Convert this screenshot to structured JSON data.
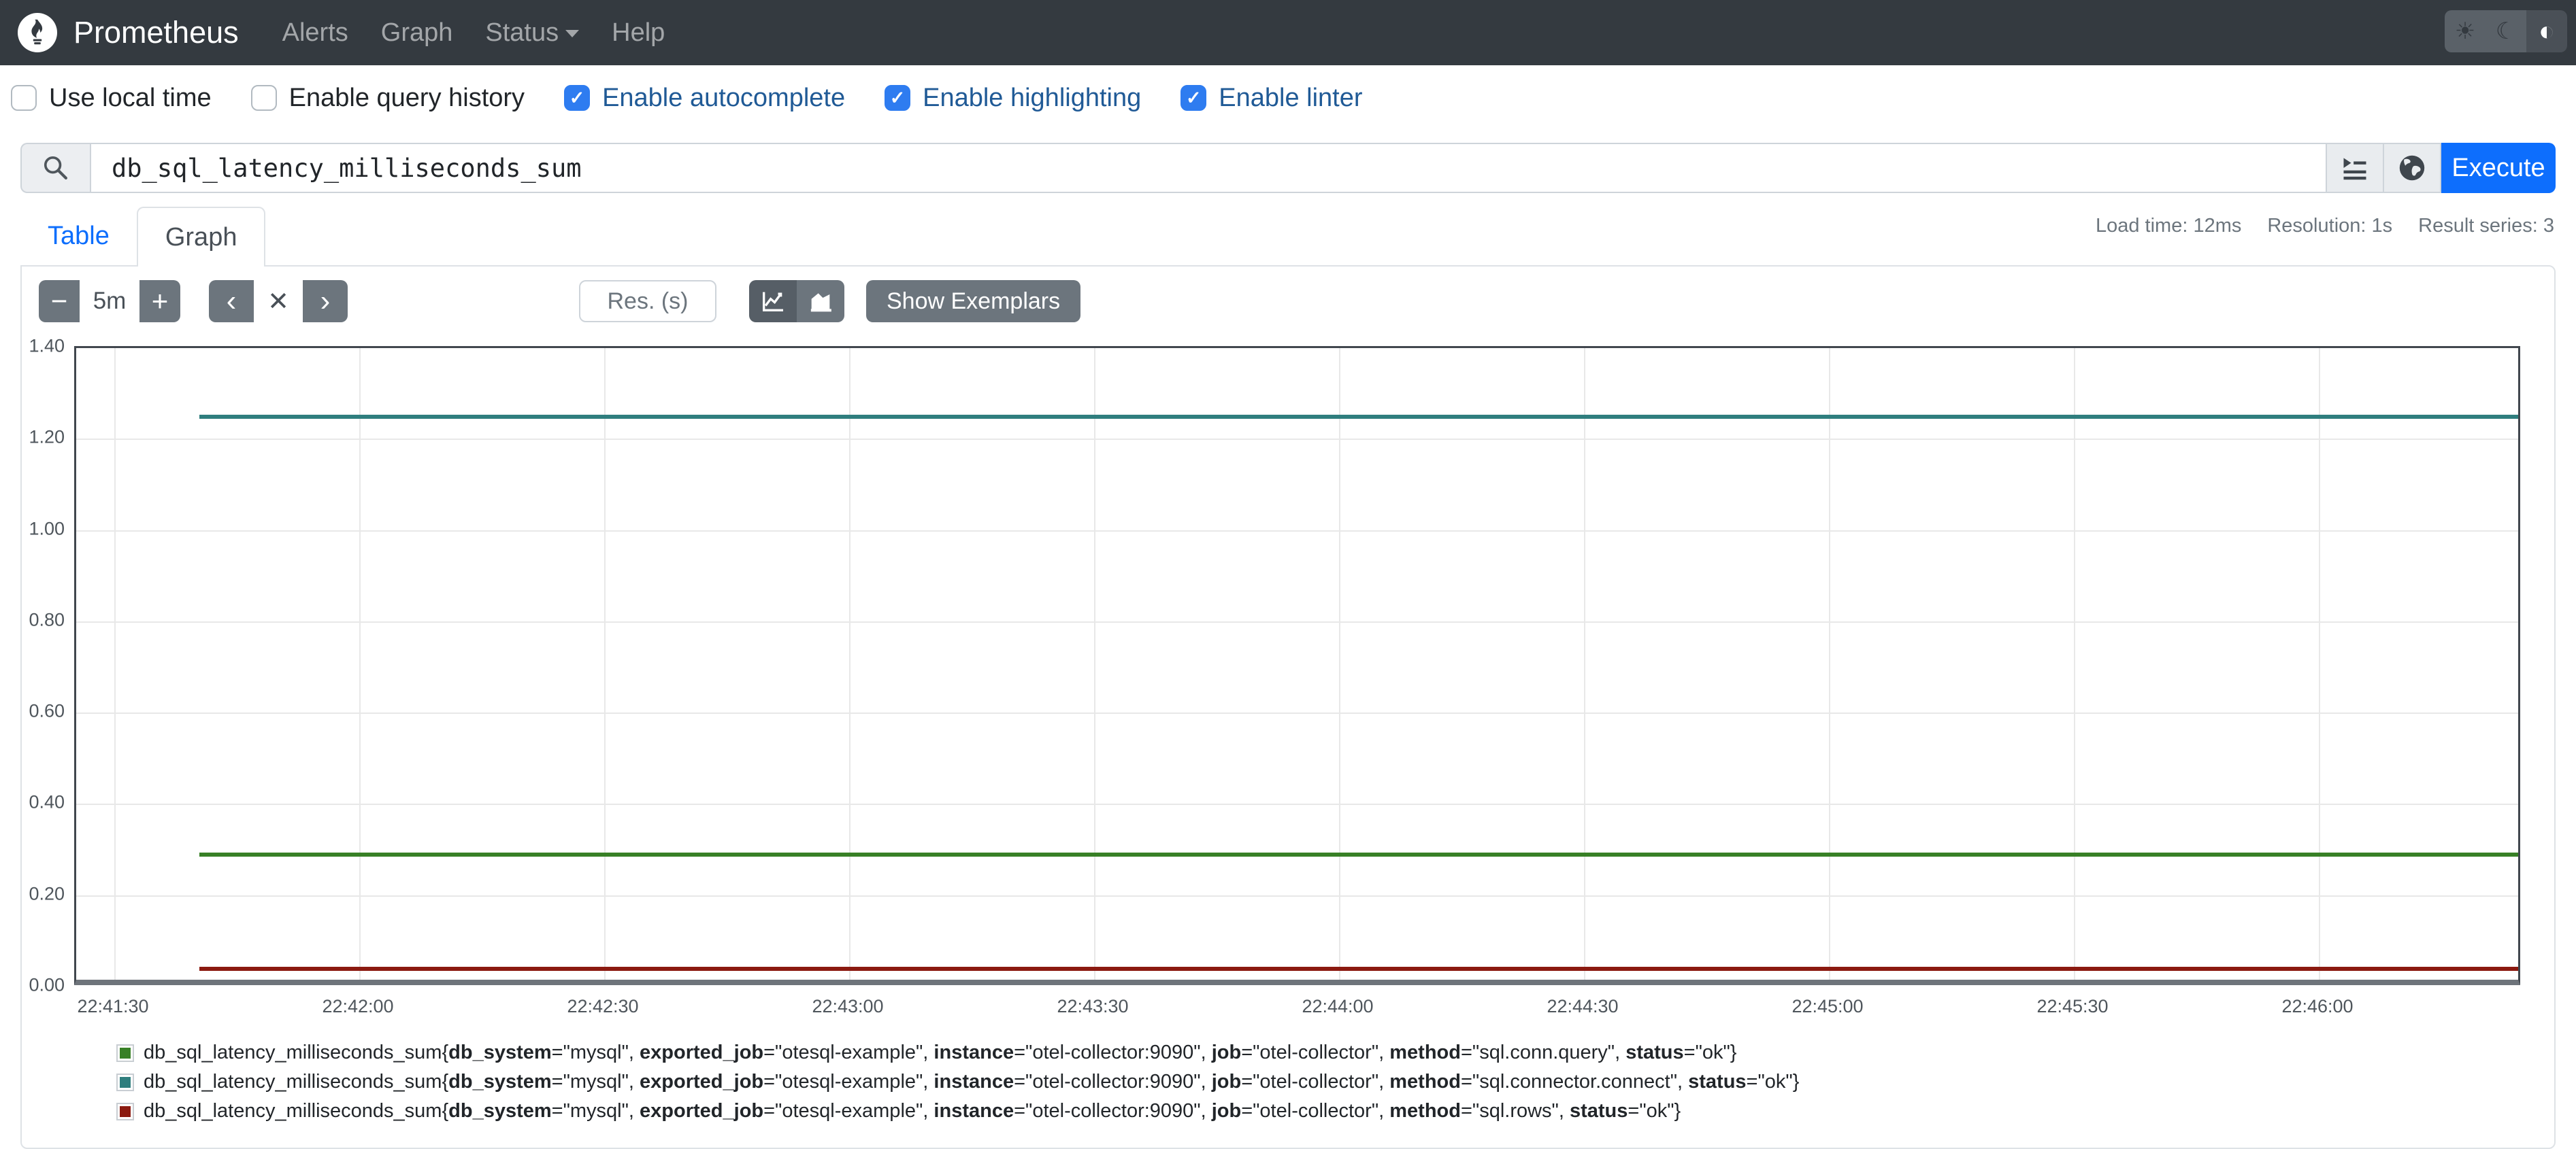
{
  "navbar": {
    "brand": "Prometheus",
    "links": [
      {
        "label": "Alerts"
      },
      {
        "label": "Graph"
      },
      {
        "label": "Status",
        "has_caret": true
      },
      {
        "label": "Help"
      }
    ],
    "theme_toggle": {
      "options": [
        "light",
        "dark",
        "auto"
      ],
      "active": "auto"
    }
  },
  "options_bar": {
    "checkboxes": [
      {
        "label": "Use local time",
        "checked": false
      },
      {
        "label": "Enable query history",
        "checked": false
      },
      {
        "label": "Enable autocomplete",
        "checked": true
      },
      {
        "label": "Enable highlighting",
        "checked": true
      },
      {
        "label": "Enable linter",
        "checked": true
      }
    ]
  },
  "query_bar": {
    "value": "db_sql_latency_milliseconds_sum",
    "execute_label": "Execute",
    "icons": [
      "search-icon",
      "metrics-explorer-icon",
      "globe-icon"
    ]
  },
  "query_stats": {
    "load_time": "Load time: 12ms",
    "resolution": "Resolution: 1s",
    "result_series": "Result series: 3"
  },
  "tabs": [
    {
      "label": "Table",
      "active": false
    },
    {
      "label": "Graph",
      "active": true
    }
  ],
  "graph_controls": {
    "decrease_label": "−",
    "range_value": "5m",
    "increase_label": "+",
    "back_label": "‹",
    "clear_label": "✕",
    "forward_label": "›",
    "res_placeholder": "Res. (s)",
    "show_exemplars_label": "Show Exemplars"
  },
  "colors": {
    "primary": "#0d6efd",
    "navbar_bg": "#343a40",
    "checked_blue": "#2e7cf0"
  },
  "chart_data": {
    "type": "line",
    "title": "",
    "xlabel": "",
    "ylabel": "",
    "ylim": [
      0,
      1.4
    ],
    "grid": true,
    "y_ticks": [
      "0.00",
      "0.20",
      "0.40",
      "0.60",
      "0.80",
      "1.00",
      "1.20",
      "1.40"
    ],
    "x_ticks": [
      "22:41:30",
      "22:42:00",
      "22:42:30",
      "22:43:00",
      "22:43:30",
      "22:44:00",
      "22:44:30",
      "22:45:00",
      "22:45:30",
      "22:46:00"
    ],
    "x_range": [
      "22:41:30",
      "22:46:25"
    ],
    "data_x_start": "22:41:40",
    "series": [
      {
        "name": "sql.connector.connect",
        "color": "#2f7e7e",
        "value": 1.25
      },
      {
        "name": "sql.conn.query",
        "color": "#388026",
        "value": 0.29
      },
      {
        "name": "sql.rows",
        "color": "#8b1a10",
        "value": 0.04
      }
    ]
  },
  "legend": {
    "metric": "db_sql_latency_milliseconds_sum",
    "series": [
      {
        "color": "#388026",
        "labels": [
          [
            "db_system",
            "\"mysql\""
          ],
          [
            "exported_job",
            "\"otesql-example\""
          ],
          [
            "instance",
            "\"otel-collector:9090\""
          ],
          [
            "job",
            "\"otel-collector\""
          ],
          [
            "method",
            "\"sql.conn.query\""
          ],
          [
            "status",
            "\"ok\""
          ]
        ]
      },
      {
        "color": "#2f7e7e",
        "labels": [
          [
            "db_system",
            "\"mysql\""
          ],
          [
            "exported_job",
            "\"otesql-example\""
          ],
          [
            "instance",
            "\"otel-collector:9090\""
          ],
          [
            "job",
            "\"otel-collector\""
          ],
          [
            "method",
            "\"sql.connector.connect\""
          ],
          [
            "status",
            "\"ok\""
          ]
        ]
      },
      {
        "color": "#8b1a10",
        "labels": [
          [
            "db_system",
            "\"mysql\""
          ],
          [
            "exported_job",
            "\"otesql-example\""
          ],
          [
            "instance",
            "\"otel-collector:9090\""
          ],
          [
            "job",
            "\"otel-collector\""
          ],
          [
            "method",
            "\"sql.rows\""
          ],
          [
            "status",
            "\"ok\""
          ]
        ]
      }
    ]
  }
}
